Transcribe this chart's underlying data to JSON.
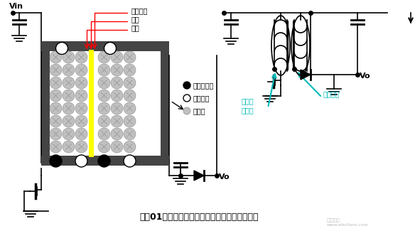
{
  "bg_color": "#ffffff",
  "title_text": "绕制01次側和二次側绕组时骨架的旋转方向相同",
  "label_jueyuan": "绶缘胶带",
  "label_dangqiang": "挡墙",
  "label_gujia": "骨架",
  "label_start": "绕组起始端",
  "label_end": "绕组末端",
  "label_quiet": "静默端",
  "label_vin": "Vin",
  "label_vo": "Vo",
  "label_vo2": "Vo",
  "label_xianshun": "绕线顺序",
  "label_bianyaqi": "变压器\n起始端",
  "line_color": "#000000",
  "red_color": "#ff0000",
  "cyan_color": "#00bbbb",
  "yellow_color": "#ffff00",
  "gray_color": "#aaaaaa",
  "dark_color": "#444444"
}
